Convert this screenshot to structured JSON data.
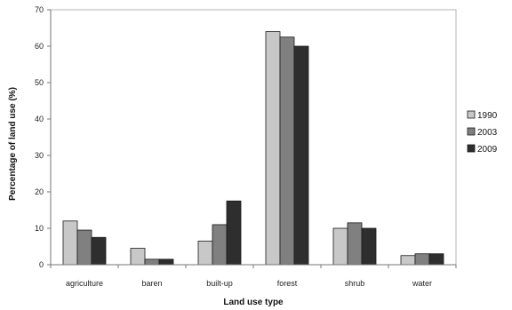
{
  "chart_data": {
    "type": "bar",
    "title": "",
    "xlabel": "Land use type",
    "ylabel": "Percentage of land use (%)",
    "categories": [
      "agriculture",
      "baren",
      "built-up",
      "forest",
      "shrub",
      "water"
    ],
    "series": [
      {
        "name": "1990",
        "color": "#c8c8c8",
        "values": [
          12,
          4.5,
          6.5,
          64,
          10,
          2.5
        ]
      },
      {
        "name": "2003",
        "color": "#808080",
        "values": [
          9.5,
          1.5,
          11,
          62.5,
          11.5,
          3
        ]
      },
      {
        "name": "2009",
        "color": "#2e2e2e",
        "values": [
          7.5,
          1.5,
          17.5,
          60,
          10,
          3
        ]
      }
    ],
    "ylim": [
      0,
      70
    ],
    "yticks": [
      0,
      10,
      20,
      30,
      40,
      50,
      60,
      70
    ],
    "grid": false,
    "legend": "right"
  }
}
